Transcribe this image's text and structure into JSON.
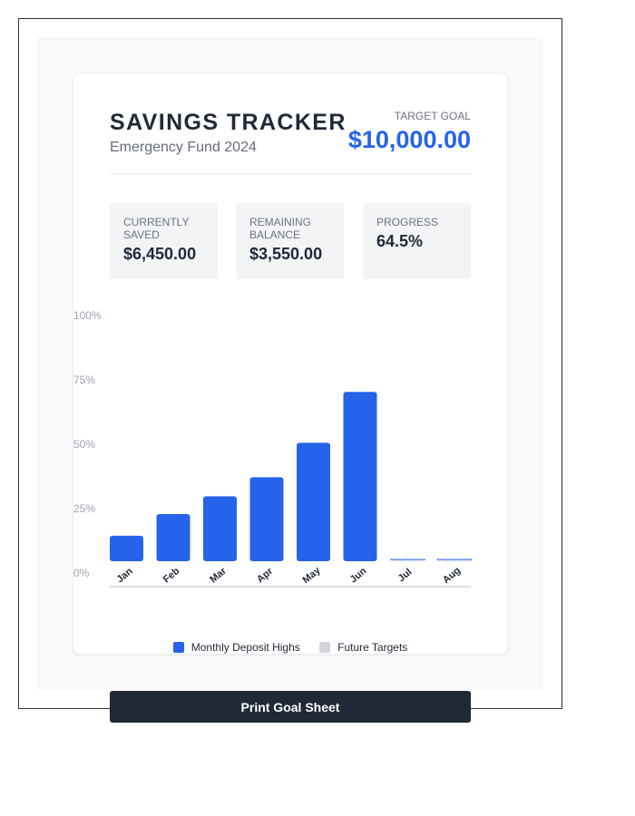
{
  "header": {
    "title": "SAVINGS TRACKER",
    "subtitle": "Emergency Fund 2024",
    "goal_label": "TARGET GOAL",
    "goal_value": "$10,000.00"
  },
  "stats": [
    {
      "label_line1": "CURRENTLY",
      "label_line2": "SAVED",
      "value": "$6,450.00"
    },
    {
      "label_line1": "REMAINING",
      "label_line2": "BALANCE",
      "value": "$3,550.00"
    },
    {
      "label_line1": "PROGRESS",
      "label_line2": "",
      "value": "64.5%"
    }
  ],
  "chart_data": {
    "type": "bar",
    "categories": [
      "Jan",
      "Feb",
      "Mar",
      "Apr",
      "May",
      "Jun",
      "Jul",
      "Aug"
    ],
    "y_ticks": [
      "100%",
      "75%",
      "50%",
      "25%",
      "0%"
    ],
    "ylim": [
      0,
      100
    ],
    "series": [
      {
        "name": "Monthly Deposit Highs",
        "values": [
          10,
          18.5,
          25.5,
          33,
          46.5,
          66.5,
          0,
          0
        ],
        "color": "#2563eb"
      },
      {
        "name": "Future Targets",
        "values": [
          0,
          0,
          0,
          0,
          0,
          0,
          0.5,
          0.5
        ],
        "color": "#d1d5db"
      }
    ],
    "grid": false,
    "legend_position": "bottom"
  },
  "legend": {
    "items": [
      {
        "label": "Monthly Deposit Highs",
        "color": "#2563eb"
      },
      {
        "label": "Future Targets",
        "color": "#d1d5db"
      }
    ]
  },
  "actions": {
    "print_label": "Print Goal Sheet"
  },
  "colors": {
    "accent": "#2563eb",
    "dark": "#1f2937",
    "muted": "#6b7280"
  }
}
